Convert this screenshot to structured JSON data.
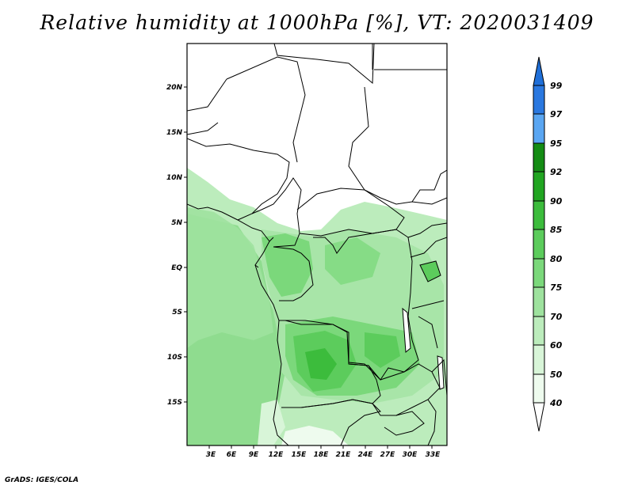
{
  "title": "Relative humidity at 1000hPa [%], VT: 2020031409",
  "credit": "GrADS: IGES/COLA",
  "map": {
    "lon_labels": [
      "3E",
      "6E",
      "9E",
      "12E",
      "15E",
      "18E",
      "21E",
      "24E",
      "27E",
      "30E",
      "33E"
    ],
    "lat_labels": [
      "20N",
      "15N",
      "10N",
      "5N",
      "EQ",
      "5S",
      "10S",
      "15S"
    ]
  },
  "colorbar": {
    "levels": [
      "99",
      "97",
      "95",
      "92",
      "90",
      "85",
      "80",
      "75",
      "70",
      "60",
      "50",
      "40"
    ],
    "colors": [
      "#1f6fd8",
      "#3b86ea",
      "#5aa6f2",
      "#148c14",
      "#21a521",
      "#3cbc3c",
      "#5ccc5c",
      "#7bd87b",
      "#9ee29e",
      "#bcecbc",
      "#d8f5d8",
      "#eefbee"
    ]
  }
}
